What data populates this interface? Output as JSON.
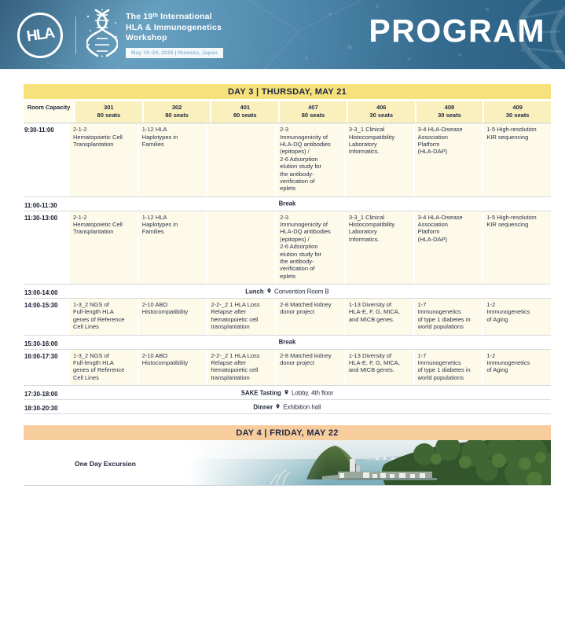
{
  "header": {
    "logo_text": "HLA",
    "title_line1": "The 19ᵗʰ International",
    "title_line2": "HLA & Immunogenetics",
    "title_line3": "Workshop",
    "badge": "May 19–24, 2026 | Numazu, Japan",
    "program_title": "PROGRAM"
  },
  "colors": {
    "header_blue": "#33698d",
    "day3_banner_yellow": "#f6e17a",
    "column_header_yellow": "#faf0be",
    "session_cell_cream": "#fefae9",
    "day4_banner_peach": "#f8cd9e",
    "text_navy": "#1e2742"
  },
  "day3": {
    "banner": "DAY 3 | THURSDAY, MAY 21",
    "corner_label": "Room Capacity",
    "columns": [
      {
        "room": "301",
        "seats": "80 seats"
      },
      {
        "room": "302",
        "seats": "80 seats"
      },
      {
        "room": "401",
        "seats": "80 seats"
      },
      {
        "room": "407",
        "seats": "80 seats"
      },
      {
        "room": "406",
        "seats": "30 seats"
      },
      {
        "room": "408",
        "seats": "30 seats"
      },
      {
        "room": "409",
        "seats": "30 seats"
      }
    ],
    "rows": [
      {
        "time": "9:30-11:00",
        "type": "sessions",
        "cells": [
          "2-1-2\nHematopoietic Cell\nTransplantation",
          "1-12 HLA\nHaplotypes in\nFamilies",
          "",
          "2-3\nImmunogenicity of\nHLA-DQ antibodies\n(epitopes) /\n2-6 Adsorption\nelution study for\nthe antibody-\nverification of\neplets",
          "3-3_1 Clinical\nHistocompatibility\nLaboratory\nInformatics.",
          "3-4 HLA-Disease\nAssociation\nPlatform\n(HLA-DAP)",
          "1-5 High-resolution\nKIR sequencing"
        ]
      },
      {
        "time": "11:00-11:30",
        "type": "break",
        "label": "Break"
      },
      {
        "time": "11:30-13:00",
        "type": "sessions",
        "cells": [
          "2-1-2\nHematopoietic Cell\nTransplantation",
          "1-12 HLA\nHaplotypes in\nFamilies",
          "",
          "2-3\nImmunogenicity of\nHLA-DQ antibodies\n(epitopes) /\n2-6 Adsorption\nelution study for\nthe antibody-\nverification of\neplets",
          "3-3_1 Clinical\nHistocompatibility\nLaboratory\nInformatics.",
          "3-4 HLA-Disease\nAssociation\nPlatform\n(HLA-DAP)",
          "1-5 High-resolution\nKIR sequencing"
        ]
      },
      {
        "time": "13:00-14:00",
        "type": "event",
        "label": "Lunch",
        "location": "Convention Room B"
      },
      {
        "time": "14:00-15:30",
        "type": "sessions",
        "cells": [
          "1-3_2 NGS of\nFull-length HLA\ngenes of Reference\nCell Lines",
          "2-10 ABO\nHistocompatibility",
          "2-2-_2 1 HLA Loss\nRelapse after\nhematopoietic cell\ntransplantation",
          "2-8 Matched kidney\ndonor project",
          "1-13 Diversity of\nHLA-E, F, G, MICA,\nand MICB genes.",
          "1-7\nImmunogenetics\nof type 1 diabetes in\nworld populations",
          "1-2\nImmunogenetics\nof Aging"
        ]
      },
      {
        "time": "15:30-16:00",
        "type": "break",
        "label": "Break"
      },
      {
        "time": "16:00-17:30",
        "type": "sessions",
        "cells": [
          "1-3_2 NGS of\nFull-length HLA\ngenes of Reference\nCell Lines",
          "2-10 ABO\nHistocompatibility",
          "2-2-_2 1 HLA Loss\nRelapse after\nhematopoietic cell\ntransplantation",
          "2-8 Matched kidney\ndonor project",
          "1-13 Diversity of\nHLA-E, F, G, MICA,\nand MICB genes.",
          "1-7\nImmunogenetics\nof type 1 diabetes in\nworld populations",
          "1-2\nImmunogenetics\nof Aging"
        ]
      },
      {
        "time": "17:30-18:00",
        "type": "event",
        "label": "SAKE Tasting",
        "location": "Lobby, 4th floor"
      },
      {
        "time": "18:30-20:30",
        "type": "event",
        "label": "Dinner",
        "location": "Exhibition hall"
      }
    ]
  },
  "day4": {
    "banner": "DAY 4 | FRIDAY, MAY 22",
    "label": "One Day Excursion"
  }
}
